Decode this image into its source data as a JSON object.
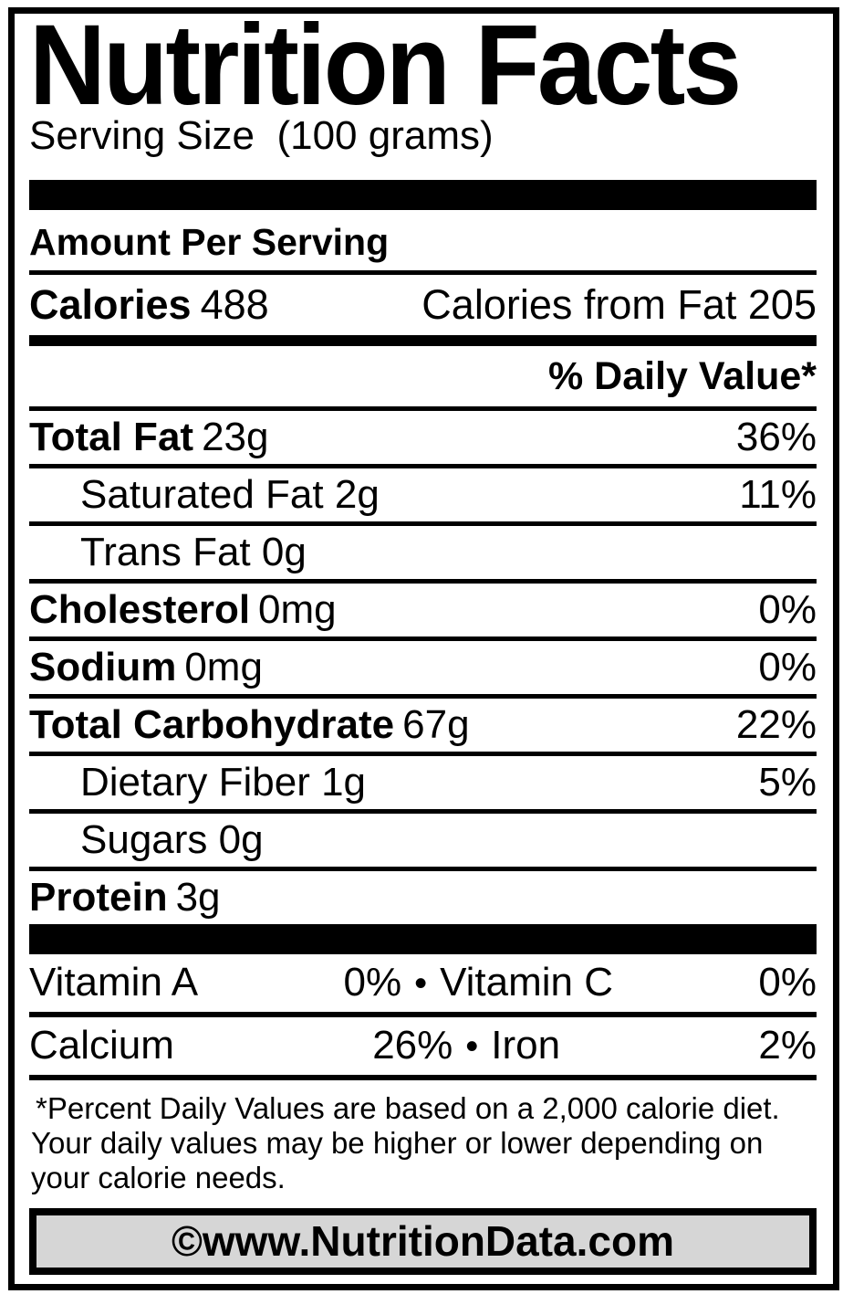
{
  "label": {
    "title": "Nutrition Facts",
    "serving_size": "Serving Size  (100 grams)",
    "amount_per_serving": "Amount Per Serving",
    "calories": {
      "label": "Calories",
      "value": "488",
      "from_fat_label": "Calories from Fat",
      "from_fat_value": "205"
    },
    "daily_value_header": "% Daily Value*",
    "nutrients": [
      {
        "name": "Total Fat",
        "amount": "23g",
        "dv": "36%"
      },
      {
        "name": "Saturated Fat",
        "amount": "2g",
        "dv": "11%"
      },
      {
        "name": "Trans Fat",
        "amount": "0g",
        "dv": ""
      },
      {
        "name": "Cholesterol",
        "amount": "0mg",
        "dv": "0%"
      },
      {
        "name": "Sodium",
        "amount": "0mg",
        "dv": "0%"
      },
      {
        "name": "Total Carbohydrate",
        "amount": "67g",
        "dv": "22%"
      },
      {
        "name": "Dietary Fiber",
        "amount": "1g",
        "dv": "5%"
      },
      {
        "name": "Sugars",
        "amount": "0g",
        "dv": ""
      },
      {
        "name": "Protein",
        "amount": "3g",
        "dv": ""
      }
    ],
    "bullet": "•",
    "vitamins": [
      {
        "left_name": "Vitamin A",
        "left_value": "0%",
        "right_name": "Vitamin C",
        "right_value": "0%"
      },
      {
        "left_name": "Calcium",
        "left_value": "26%",
        "right_name": "Iron",
        "right_value": "2%"
      }
    ],
    "footnote_lines": [
      "*Percent Daily Values are based on a 2,000 calorie diet.",
      "Your daily values may be higher or lower depending on",
      "your calorie needs."
    ],
    "footer": "©www.NutritionData.com",
    "colors": {
      "ink": "#000000",
      "footer_bg": "#d6d6d6"
    }
  }
}
